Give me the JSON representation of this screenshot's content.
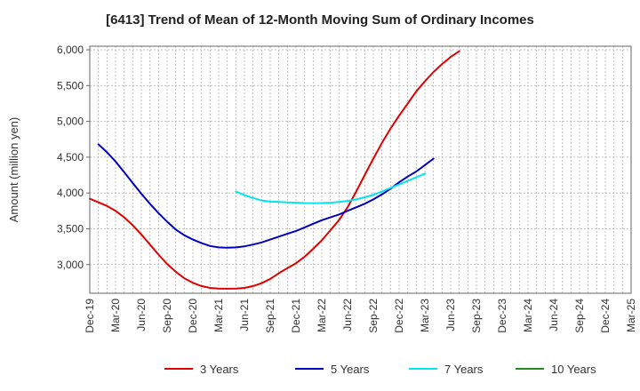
{
  "chart_data": {
    "type": "line",
    "title": "[6413]  Trend of Mean of 12-Month Moving Sum of Ordinary Incomes",
    "xlabel": "",
    "ylabel": "Amount (million yen)",
    "ylim": [
      2600,
      6050
    ],
    "yticks": [
      3000,
      3500,
      4000,
      4500,
      5000,
      5500,
      6000
    ],
    "ytick_labels": [
      "3,000",
      "3,500",
      "4,000",
      "4,500",
      "5,000",
      "5,500",
      "6,000"
    ],
    "xticks": [
      "Dec-19",
      "Mar-20",
      "Jun-20",
      "Sep-20",
      "Dec-20",
      "Mar-21",
      "Jun-21",
      "Sep-21",
      "Dec-21",
      "Mar-22",
      "Jun-22",
      "Sep-22",
      "Dec-22",
      "Mar-23",
      "Jun-23",
      "Sep-23",
      "Dec-23",
      "Mar-24",
      "Jun-24",
      "Sep-24",
      "Dec-24",
      "Mar-25"
    ],
    "grid": true,
    "legend_position": "bottom",
    "series": [
      {
        "name": "3 Years",
        "color": "#e00000",
        "start_index": 0,
        "values": [
          3920,
          3870,
          3820,
          3750,
          3660,
          3550,
          3420,
          3280,
          3140,
          3010,
          2900,
          2810,
          2745,
          2700,
          2675,
          2665,
          2663,
          2665,
          2675,
          2700,
          2740,
          2800,
          2880,
          2950,
          3020,
          3110,
          3220,
          3340,
          3480,
          3620,
          3800,
          4020,
          4250,
          4480,
          4700,
          4900,
          5080,
          5250,
          5420,
          5560,
          5690,
          5800,
          5900,
          5980
        ]
      },
      {
        "name": "5 Years",
        "color": "#0000c0",
        "start_index": 1,
        "values": [
          4680,
          4570,
          4440,
          4290,
          4140,
          3990,
          3850,
          3720,
          3600,
          3490,
          3410,
          3350,
          3300,
          3260,
          3240,
          3235,
          3240,
          3255,
          3280,
          3310,
          3350,
          3390,
          3430,
          3470,
          3520,
          3570,
          3620,
          3660,
          3700,
          3750,
          3800,
          3850,
          3910,
          3980,
          4060,
          4150,
          4230,
          4300,
          4390,
          4480
        ]
      },
      {
        "name": "7 Years",
        "color": "#00e5ee",
        "start_index": 17,
        "values": [
          4020,
          3970,
          3930,
          3895,
          3880,
          3875,
          3870,
          3865,
          3860,
          3858,
          3860,
          3865,
          3875,
          3890,
          3910,
          3940,
          3975,
          4020,
          4070,
          4120,
          4170,
          4220,
          4270
        ]
      },
      {
        "name": "10 Years",
        "color": "#228b22",
        "start_index": 0,
        "values": []
      }
    ]
  }
}
